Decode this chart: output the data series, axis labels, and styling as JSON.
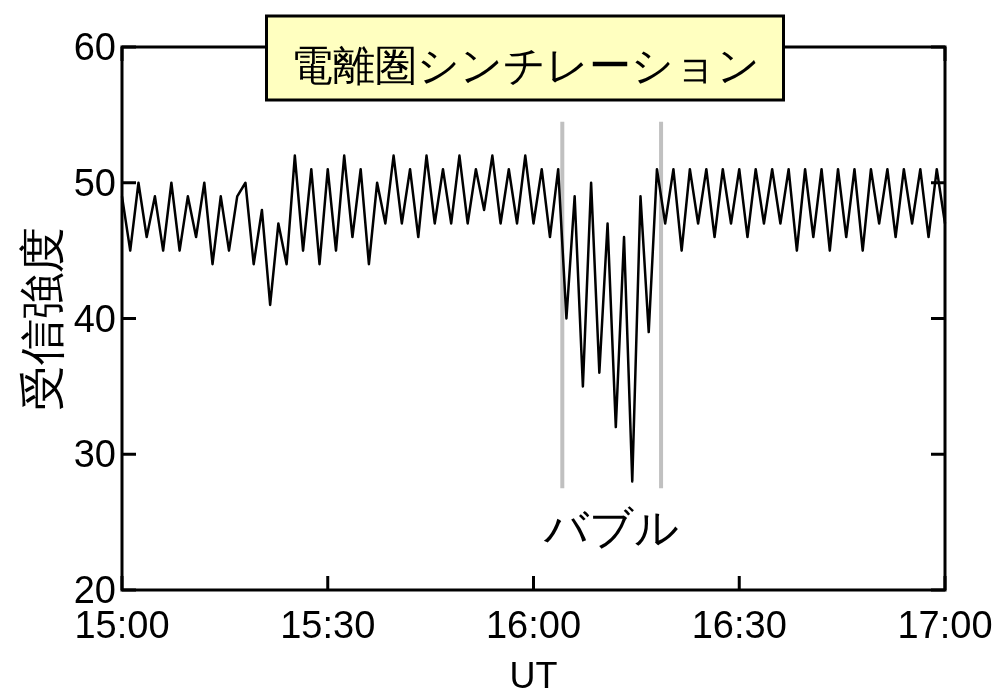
{
  "chart_data": {
    "type": "line",
    "title": "電離圏シンチレーション",
    "xlabel": "UT",
    "ylabel": "受信強度",
    "xlim": [
      15,
      17
    ],
    "ylim": [
      20,
      60
    ],
    "xticks": [
      {
        "value": 15,
        "label": "15:00"
      },
      {
        "value": 15.5,
        "label": "15:30"
      },
      {
        "value": 16,
        "label": "16:00"
      },
      {
        "value": 16.5,
        "label": "16:30"
      },
      {
        "value": 17,
        "label": "17:00"
      }
    ],
    "yticks": [
      20,
      30,
      40,
      50,
      60
    ],
    "grid": false,
    "marker": "none",
    "line_style": "solid",
    "ref_lines": [
      {
        "axis": "x",
        "value": 16.07,
        "color": "#c0c0c0"
      },
      {
        "axis": "x",
        "value": 16.31,
        "color": "#c0c0c0"
      }
    ],
    "annotations": [
      "バブル"
    ],
    "series": [
      {
        "color": "#000000",
        "x": [
          15.0,
          15.02,
          15.04,
          15.06,
          15.08,
          15.1,
          15.12,
          15.14,
          15.16,
          15.18,
          15.2,
          15.22,
          15.24,
          15.26,
          15.28,
          15.3,
          15.32,
          15.34,
          15.36,
          15.38,
          15.4,
          15.42,
          15.44,
          15.46,
          15.48,
          15.5,
          15.52,
          15.54,
          15.56,
          15.58,
          15.6,
          15.62,
          15.64,
          15.66,
          15.68,
          15.7,
          15.72,
          15.74,
          15.76,
          15.78,
          15.8,
          15.82,
          15.84,
          15.86,
          15.88,
          15.9,
          15.92,
          15.94,
          15.96,
          15.98,
          16.0,
          16.02,
          16.04,
          16.06,
          16.08,
          16.1,
          16.12,
          16.14,
          16.16,
          16.18,
          16.2,
          16.22,
          16.24,
          16.26,
          16.28,
          16.3,
          16.32,
          16.34,
          16.36,
          16.38,
          16.4,
          16.42,
          16.44,
          16.46,
          16.48,
          16.5,
          16.52,
          16.54,
          16.56,
          16.58,
          16.6,
          16.62,
          16.64,
          16.66,
          16.68,
          16.7,
          16.72,
          16.74,
          16.76,
          16.78,
          16.8,
          16.82,
          16.84,
          16.86,
          16.88,
          16.9,
          16.92,
          16.94,
          16.96,
          16.98,
          17.0
        ],
        "values": [
          49,
          45,
          50,
          46,
          49,
          45,
          50,
          45,
          49,
          46,
          50,
          44,
          49,
          45,
          49,
          50,
          44,
          48,
          41,
          47,
          44,
          52,
          45,
          51,
          44,
          51,
          45,
          52,
          46,
          51,
          44,
          50,
          47,
          52,
          47,
          51,
          46,
          52,
          47,
          51,
          47,
          52,
          47,
          51,
          48,
          52,
          47,
          51,
          47,
          52,
          47,
          51,
          46,
          51,
          40,
          49,
          35,
          50,
          36,
          47,
          32,
          46,
          28,
          49,
          39,
          51,
          47,
          51,
          45,
          51,
          47,
          51,
          46,
          51,
          47,
          51,
          46,
          51,
          47,
          51,
          47,
          51,
          45,
          51,
          46,
          51,
          45,
          51,
          46,
          51,
          45,
          51,
          47,
          51,
          46,
          51,
          47,
          51,
          46,
          51,
          47
        ]
      }
    ]
  }
}
